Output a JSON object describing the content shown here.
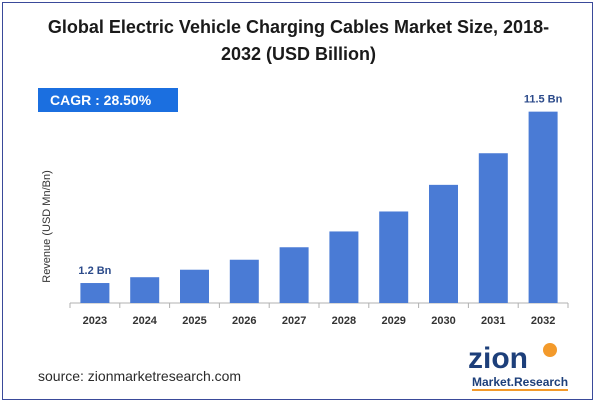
{
  "title_lines": [
    "Global Electric Vehicle Charging Cables Market Size, 2018-",
    "2032 (USD Billion)"
  ],
  "cagr_label": "CAGR :  28.50%",
  "source": "source: zionmarketresearch.com",
  "logo": {
    "word_top": "zion",
    "word_bottom": "Market.Research"
  },
  "colors": {
    "bar": "#4a7bd5",
    "cagr_bg": "#1b6fe0",
    "logo_dark": "#1d3f7a",
    "logo_orange": "#f39a2b",
    "axis": "#b0b0b0",
    "frame": "#3a4a9a"
  },
  "chart_data": {
    "type": "bar",
    "title": "Global Electric Vehicle Charging Cables Market Size, 2018-2032 (USD Billion)",
    "ylabel": "Revenue (USD Mn/Bn)",
    "xlabel": "",
    "categories": [
      "2023",
      "2024",
      "2025",
      "2026",
      "2027",
      "2028",
      "2029",
      "2030",
      "2031",
      "2032"
    ],
    "values": [
      1.2,
      1.55,
      2.0,
      2.6,
      3.35,
      4.3,
      5.5,
      7.1,
      9.0,
      11.5
    ],
    "ylim": [
      0,
      12.5
    ],
    "data_labels": [
      {
        "index": 0,
        "text": "1.2 Bn"
      },
      {
        "index": 9,
        "text": "11.5 Bn"
      }
    ],
    "grid": false,
    "legend": "none"
  }
}
